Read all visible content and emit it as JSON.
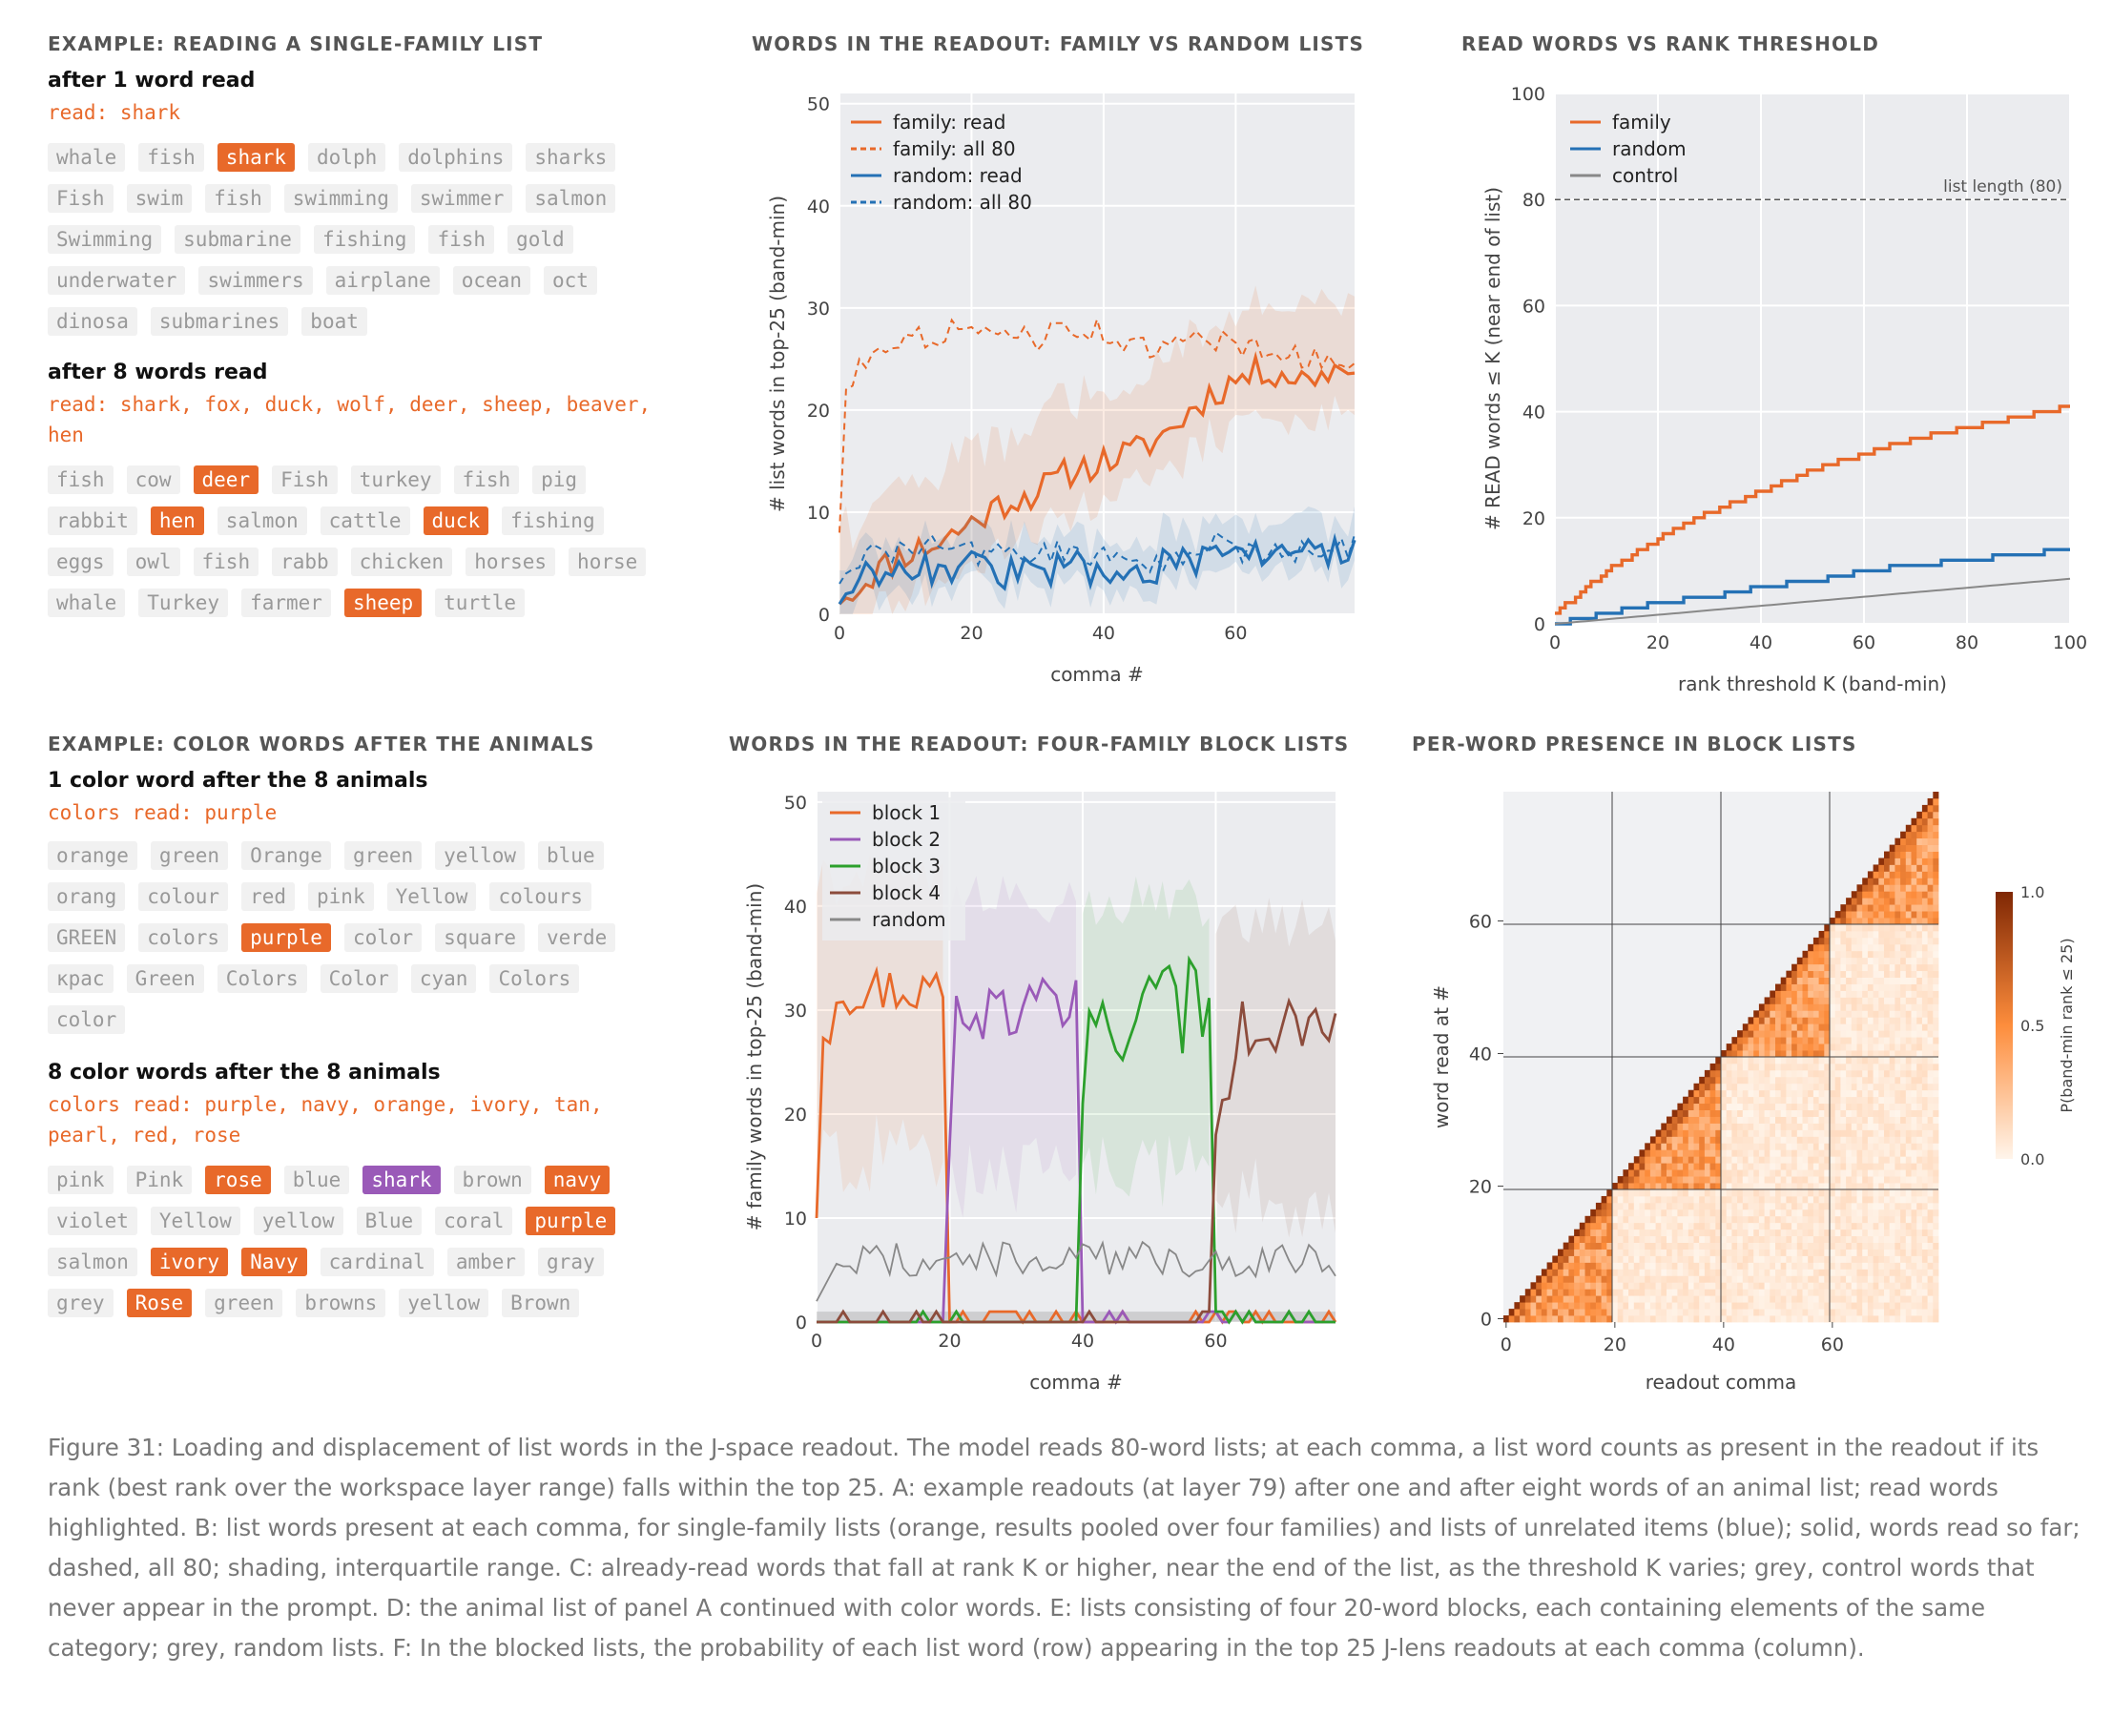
{
  "panelA": {
    "title": "EXAMPLE: READING A SINGLE-FAMILY LIST",
    "sections": [
      {
        "heading": "after 1 word read",
        "read": "read: shark",
        "chips": [
          {
            "t": "whale",
            "h": ""
          },
          {
            "t": "fish",
            "h": ""
          },
          {
            "t": "shark",
            "h": "orange"
          },
          {
            "t": "dolph",
            "h": ""
          },
          {
            "t": "dolphins",
            "h": ""
          },
          {
            "t": "sharks",
            "h": ""
          },
          {
            "t": "Fish",
            "h": ""
          },
          {
            "t": "swim",
            "h": ""
          },
          {
            "t": "fish",
            "h": ""
          },
          {
            "t": "swimming",
            "h": ""
          },
          {
            "t": "swimmer",
            "h": ""
          },
          {
            "t": "salmon",
            "h": ""
          },
          {
            "t": "Swimming",
            "h": ""
          },
          {
            "t": "submarine",
            "h": ""
          },
          {
            "t": "fishing",
            "h": ""
          },
          {
            "t": "fish",
            "h": ""
          },
          {
            "t": "gold",
            "h": ""
          },
          {
            "t": "underwater",
            "h": ""
          },
          {
            "t": "swimmers",
            "h": ""
          },
          {
            "t": "airplane",
            "h": ""
          },
          {
            "t": "ocean",
            "h": ""
          },
          {
            "t": "oct",
            "h": ""
          },
          {
            "t": "dinosa",
            "h": ""
          },
          {
            "t": "submarines",
            "h": ""
          },
          {
            "t": "boat",
            "h": ""
          }
        ]
      },
      {
        "heading": "after 8 words read",
        "read": "read: shark, fox, duck, wolf, deer, sheep, beaver, hen",
        "chips": [
          {
            "t": "fish",
            "h": ""
          },
          {
            "t": "cow",
            "h": ""
          },
          {
            "t": "deer",
            "h": "orange"
          },
          {
            "t": "Fish",
            "h": ""
          },
          {
            "t": "turkey",
            "h": ""
          },
          {
            "t": "fish",
            "h": ""
          },
          {
            "t": "pig",
            "h": ""
          },
          {
            "t": "rabbit",
            "h": ""
          },
          {
            "t": "hen",
            "h": "orange"
          },
          {
            "t": "salmon",
            "h": ""
          },
          {
            "t": "cattle",
            "h": ""
          },
          {
            "t": "duck",
            "h": "orange"
          },
          {
            "t": "fishing",
            "h": ""
          },
          {
            "t": "eggs",
            "h": ""
          },
          {
            "t": "owl",
            "h": ""
          },
          {
            "t": "fish",
            "h": ""
          },
          {
            "t": "rabb",
            "h": ""
          },
          {
            "t": "chicken",
            "h": ""
          },
          {
            "t": "horses",
            "h": ""
          },
          {
            "t": "horse",
            "h": ""
          },
          {
            "t": "whale",
            "h": ""
          },
          {
            "t": "Turkey",
            "h": ""
          },
          {
            "t": "farmer",
            "h": ""
          },
          {
            "t": "sheep",
            "h": "orange"
          },
          {
            "t": "turtle",
            "h": ""
          }
        ]
      }
    ]
  },
  "panelD": {
    "title": "EXAMPLE: COLOR WORDS AFTER THE ANIMALS",
    "sections": [
      {
        "heading": "1 color word after the 8 animals",
        "read": "colors read: purple",
        "chips": [
          {
            "t": "orange",
            "h": ""
          },
          {
            "t": "green",
            "h": ""
          },
          {
            "t": "Orange",
            "h": ""
          },
          {
            "t": "green",
            "h": ""
          },
          {
            "t": "yellow",
            "h": ""
          },
          {
            "t": "blue",
            "h": ""
          },
          {
            "t": "orang",
            "h": ""
          },
          {
            "t": "colour",
            "h": ""
          },
          {
            "t": "red",
            "h": ""
          },
          {
            "t": "pink",
            "h": ""
          },
          {
            "t": "Yellow",
            "h": ""
          },
          {
            "t": "colours",
            "h": ""
          },
          {
            "t": "GREEN",
            "h": ""
          },
          {
            "t": "colors",
            "h": ""
          },
          {
            "t": "purple",
            "h": "orange"
          },
          {
            "t": "color",
            "h": ""
          },
          {
            "t": "square",
            "h": ""
          },
          {
            "t": "verde",
            "h": ""
          },
          {
            "t": "крас",
            "h": ""
          },
          {
            "t": "Green",
            "h": ""
          },
          {
            "t": "Colors",
            "h": ""
          },
          {
            "t": "Color",
            "h": ""
          },
          {
            "t": "cyan",
            "h": ""
          },
          {
            "t": "Colors",
            "h": ""
          },
          {
            "t": "color",
            "h": ""
          }
        ]
      },
      {
        "heading": "8 color words after the 8 animals",
        "read": "colors read: purple, navy, orange, ivory, tan, pearl, red, rose",
        "chips": [
          {
            "t": "pink",
            "h": ""
          },
          {
            "t": "Pink",
            "h": ""
          },
          {
            "t": "rose",
            "h": "orange"
          },
          {
            "t": "blue",
            "h": ""
          },
          {
            "t": "shark",
            "h": "purple"
          },
          {
            "t": "brown",
            "h": ""
          },
          {
            "t": "navy",
            "h": "orange"
          },
          {
            "t": "violet",
            "h": ""
          },
          {
            "t": "Yellow",
            "h": ""
          },
          {
            "t": "yellow",
            "h": ""
          },
          {
            "t": "Blue",
            "h": ""
          },
          {
            "t": "coral",
            "h": ""
          },
          {
            "t": "purple",
            "h": "orange"
          },
          {
            "t": "salmon",
            "h": ""
          },
          {
            "t": "ivory",
            "h": "orange"
          },
          {
            "t": "Navy",
            "h": "orange"
          },
          {
            "t": "cardinal",
            "h": ""
          },
          {
            "t": "amber",
            "h": ""
          },
          {
            "t": "gray",
            "h": ""
          },
          {
            "t": "grey",
            "h": ""
          },
          {
            "t": "Rose",
            "h": "orange"
          },
          {
            "t": "green",
            "h": ""
          },
          {
            "t": "browns",
            "h": ""
          },
          {
            "t": "yellow",
            "h": ""
          },
          {
            "t": "Brown",
            "h": ""
          }
        ]
      }
    ]
  },
  "chart_data": [
    {
      "id": "B",
      "type": "line",
      "title": "WORDS IN THE READOUT: FAMILY VS RANDOM LISTS",
      "xlabel": "comma #",
      "ylabel": "# list words in top-25 (band-min)",
      "xlim": [
        0,
        78
      ],
      "ylim": [
        0,
        51
      ],
      "xticks": [
        0,
        20,
        40,
        60
      ],
      "yticks": [
        0,
        10,
        20,
        30,
        40,
        50
      ],
      "grid": true,
      "legend": "top-left",
      "series": [
        {
          "name": "family: read",
          "color": "#e8692a",
          "dash": false,
          "keypoints": [
            [
              0,
              1
            ],
            [
              5,
              4
            ],
            [
              10,
              6
            ],
            [
              15,
              7
            ],
            [
              20,
              9
            ],
            [
              25,
              11
            ],
            [
              30,
              12
            ],
            [
              35,
              14
            ],
            [
              40,
              15
            ],
            [
              45,
              16
            ],
            [
              50,
              18
            ],
            [
              55,
              21
            ],
            [
              60,
              23
            ],
            [
              65,
              24
            ],
            [
              70,
              23
            ],
            [
              75,
              24
            ],
            [
              78,
              25
            ]
          ],
          "band": [
            4,
            7
          ]
        },
        {
          "name": "family: all 80",
          "color": "#e8692a",
          "dash": true,
          "keypoints": [
            [
              0,
              8
            ],
            [
              1,
              22
            ],
            [
              3,
              24
            ],
            [
              5,
              26
            ],
            [
              8,
              27
            ],
            [
              12,
              27
            ],
            [
              18,
              28
            ],
            [
              22,
              27
            ],
            [
              26,
              28
            ],
            [
              30,
              27
            ],
            [
              34,
              28
            ],
            [
              38,
              28
            ],
            [
              42,
              27
            ],
            [
              46,
              26
            ],
            [
              50,
              26
            ],
            [
              54,
              27
            ],
            [
              58,
              27
            ],
            [
              62,
              26
            ],
            [
              66,
              26
            ],
            [
              70,
              25
            ],
            [
              74,
              25
            ],
            [
              78,
              25
            ]
          ]
        },
        {
          "name": "random: read",
          "color": "#2471b5",
          "dash": false,
          "keypoints": [
            [
              0,
              1
            ],
            [
              2,
              3
            ],
            [
              5,
              4
            ],
            [
              8,
              5
            ],
            [
              12,
              5
            ],
            [
              16,
              4
            ],
            [
              20,
              5
            ],
            [
              25,
              4
            ],
            [
              30,
              4
            ],
            [
              35,
              5
            ],
            [
              40,
              4
            ],
            [
              45,
              4
            ],
            [
              50,
              5
            ],
            [
              55,
              5
            ],
            [
              60,
              6
            ],
            [
              65,
              6
            ],
            [
              70,
              6
            ],
            [
              75,
              6
            ],
            [
              78,
              7
            ]
          ],
          "band": [
            2,
            3
          ]
        },
        {
          "name": "random: all 80",
          "color": "#2471b5",
          "dash": true,
          "keypoints": [
            [
              0,
              3
            ],
            [
              2,
              5
            ],
            [
              5,
              6
            ],
            [
              10,
              6
            ],
            [
              15,
              7
            ],
            [
              20,
              6
            ],
            [
              25,
              6
            ],
            [
              30,
              6
            ],
            [
              35,
              6
            ],
            [
              40,
              6
            ],
            [
              45,
              5
            ],
            [
              50,
              5
            ],
            [
              55,
              6
            ],
            [
              58,
              8
            ],
            [
              60,
              6
            ],
            [
              65,
              6
            ],
            [
              70,
              6
            ],
            [
              75,
              6
            ],
            [
              78,
              7
            ]
          ]
        }
      ]
    },
    {
      "id": "C",
      "type": "line",
      "title": "READ WORDS VS RANK THRESHOLD",
      "xlabel": "rank threshold K (band-min)",
      "ylabel": "# READ words ≤ K (near end of list)",
      "xlim": [
        0,
        100
      ],
      "ylim": [
        0,
        100
      ],
      "xticks": [
        0,
        20,
        40,
        60,
        80,
        100
      ],
      "yticks": [
        0,
        20,
        40,
        60,
        80,
        100
      ],
      "grid": true,
      "legend": "top-left",
      "annotation": {
        "text": "list length (80)",
        "y": 80
      },
      "series": [
        {
          "name": "family",
          "color": "#e8692a",
          "keypoints": [
            [
              0,
              2
            ],
            [
              5,
              6
            ],
            [
              10,
              10
            ],
            [
              20,
              16
            ],
            [
              30,
              21
            ],
            [
              40,
              25
            ],
            [
              50,
              29
            ],
            [
              60,
              32
            ],
            [
              70,
              35
            ],
            [
              80,
              37
            ],
            [
              90,
              39
            ],
            [
              100,
              41
            ]
          ]
        },
        {
          "name": "random",
          "color": "#2471b5",
          "keypoints": [
            [
              0,
              0
            ],
            [
              5,
              1
            ],
            [
              10,
              2
            ],
            [
              20,
              4
            ],
            [
              30,
              5
            ],
            [
              40,
              7
            ],
            [
              50,
              8
            ],
            [
              60,
              10
            ],
            [
              70,
              11
            ],
            [
              80,
              12
            ],
            [
              90,
              13
            ],
            [
              100,
              14
            ]
          ]
        },
        {
          "name": "control",
          "color": "#888888",
          "keypoints": [
            [
              0,
              0
            ],
            [
              100,
              8.5
            ]
          ]
        }
      ]
    },
    {
      "id": "E",
      "type": "line",
      "title": "WORDS IN THE READOUT: FOUR-FAMILY BLOCK LISTS",
      "xlabel": "comma #",
      "ylabel": "# family words in top-25 (band-min)",
      "xlim": [
        0,
        78
      ],
      "ylim": [
        0,
        51
      ],
      "xticks": [
        0,
        20,
        40,
        60
      ],
      "yticks": [
        0,
        10,
        20,
        30,
        40,
        50
      ],
      "grid": true,
      "legend": "top-left",
      "series": [
        {
          "name": "block 1",
          "color": "#e8692a",
          "start": 0,
          "end": 19,
          "start_value": 10,
          "mean": 32,
          "amp": 2.5
        },
        {
          "name": "block 2",
          "color": "#9a5ab8",
          "start": 20,
          "end": 39,
          "start_value": 17,
          "mean": 30,
          "amp": 3
        },
        {
          "name": "block 3",
          "color": "#2ca02c",
          "start": 40,
          "end": 59,
          "start_value": 21,
          "mean": 30,
          "amp": 5
        },
        {
          "name": "block 4",
          "color": "#8c4c3c",
          "start": 60,
          "end": 78,
          "start_value": 18,
          "mean": 28,
          "amp": 3
        },
        {
          "name": "random",
          "color": "#888888",
          "start": 0,
          "end": 78,
          "start_value": 2,
          "mean": 6,
          "amp": 1
        }
      ]
    },
    {
      "id": "F",
      "type": "heatmap",
      "title": "PER-WORD PRESENCE IN BLOCK LISTS",
      "xlabel": "readout comma",
      "ylabel": "word read at #",
      "xticks": [
        0,
        20,
        40,
        60
      ],
      "yticks": [
        0,
        20,
        40,
        60
      ],
      "n": 80,
      "block_size": 20,
      "colorbar": {
        "label": "P(band-min rank ≤ 25)",
        "ticks": [
          "0.0",
          "0.5",
          "1.0"
        ],
        "min_color": "#fff5eb",
        "max_color": "#7f2704"
      }
    }
  ],
  "caption": "Figure 31: Loading and displacement of list words in the J-space readout. The model reads 80-word lists; at each comma, a list word counts as present in the readout if its rank (best rank over the workspace layer range) falls within the top 25. A: example readouts (at layer 79) after one and after eight words of an animal list; read words highlighted. B: list words present at each comma, for single-family lists (orange, results pooled over four families) and lists of unrelated items (blue); solid, words read so far; dashed, all 80; shading, interquartile range. C: already-read words that fall at rank K or higher, near the end of the list, as the threshold K varies; grey, control words that never appear in the prompt. D: the animal list of panel A continued with color words. E: lists consisting of four 20-word blocks, each containing elements of the same category; grey, random lists. F: In the blocked lists, the probability of each list word (row) appearing in the top 25 J-lens readouts at each comma (column)."
}
